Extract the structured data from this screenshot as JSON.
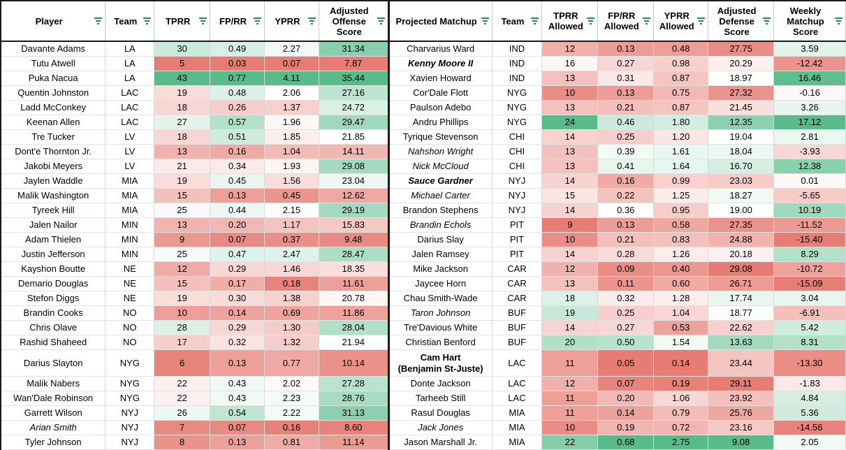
{
  "headers": {
    "player": "Player",
    "team": "Team",
    "tprr": "TPRR",
    "fprr": "FP/RR",
    "yprr": "YPRR",
    "aos": "Adjusted Offense Score",
    "matchup": "Projected Matchup",
    "team2": "Team",
    "tprr_allowed": "TPRR Allowed",
    "fprr_allowed": "FP/RR Allowed",
    "yprr_allowed": "YPRR Allowed",
    "ads": "Adjusted Defense Score",
    "wms": "Weekly Matchup Score"
  },
  "colors": {
    "green": "#57bb8a",
    "white": "#ffffff",
    "red": "#e67c73"
  },
  "rows": [
    {
      "player": "Davante Adams",
      "team": "LA",
      "tprr": "30",
      "fprr": "0.49",
      "yprr": "2.27",
      "aos": "31.34",
      "matchup": "Charvarius Ward",
      "team2": "IND",
      "tprr_a": "12",
      "fprr_a": "0.13",
      "yprr_a": "0.48",
      "ads": "27.75",
      "wms": "3.59"
    },
    {
      "player": "Tutu Atwell",
      "team": "LA",
      "tprr": "5",
      "fprr": "0.03",
      "yprr": "0.07",
      "aos": "7.87",
      "matchup": "Kenny Moore II",
      "matchup_style": "bi",
      "team2": "IND",
      "tprr_a": "16",
      "fprr_a": "0.27",
      "yprr_a": "0.98",
      "ads": "20.29",
      "wms": "-12.42"
    },
    {
      "player": "Puka Nacua",
      "team": "LA",
      "tprr": "43",
      "fprr": "0.77",
      "yprr": "4.11",
      "aos": "35.44",
      "matchup": "Xavien Howard",
      "team2": "IND",
      "tprr_a": "13",
      "fprr_a": "0.31",
      "yprr_a": "0.87",
      "ads": "18.97",
      "wms": "16.46"
    },
    {
      "player": "Quentin Johnston",
      "team": "LAC",
      "tprr": "19",
      "fprr": "0.48",
      "yprr": "2.06",
      "aos": "27.16",
      "matchup": "Cor'Dale Flott",
      "team2": "NYG",
      "tprr_a": "10",
      "fprr_a": "0.13",
      "yprr_a": "0.75",
      "ads": "27.32",
      "wms": "-0.16"
    },
    {
      "player": "Ladd McConkey",
      "team": "LAC",
      "tprr": "18",
      "fprr": "0.26",
      "yprr": "1.37",
      "aos": "24.72",
      "matchup": "Paulson Adebo",
      "team2": "NYG",
      "tprr_a": "13",
      "fprr_a": "0.21",
      "yprr_a": "0.87",
      "ads": "21.45",
      "wms": "3.26"
    },
    {
      "player": "Keenan Allen",
      "team": "LAC",
      "tprr": "27",
      "fprr": "0.57",
      "yprr": "1.96",
      "aos": "29.47",
      "matchup": "Andru Phillips",
      "team2": "NYG",
      "tprr_a": "24",
      "fprr_a": "0.46",
      "yprr_a": "1.80",
      "ads": "12.35",
      "wms": "17.12"
    },
    {
      "player": "Tre Tucker",
      "team": "LV",
      "tprr": "18",
      "fprr": "0.51",
      "yprr": "1.85",
      "aos": "21.85",
      "matchup": "Tyrique Stevenson",
      "team2": "CHI",
      "tprr_a": "14",
      "fprr_a": "0.25",
      "yprr_a": "1.20",
      "ads": "19.04",
      "wms": "2.81"
    },
    {
      "player": "Dont'e Thornton Jr.",
      "team": "LV",
      "tprr": "13",
      "fprr": "0.16",
      "yprr": "1.04",
      "aos": "14.11",
      "matchup": "Nahshon Wright",
      "matchup_style": "it",
      "team2": "CHI",
      "tprr_a": "13",
      "fprr_a": "0.39",
      "yprr_a": "1.61",
      "ads": "18.04",
      "wms": "-3.93"
    },
    {
      "player": "Jakobi Meyers",
      "team": "LV",
      "tprr": "21",
      "fprr": "0.34",
      "yprr": "1.93",
      "aos": "29.08",
      "matchup": "Nick McCloud",
      "matchup_style": "it",
      "team2": "CHI",
      "tprr_a": "13",
      "fprr_a": "0.41",
      "yprr_a": "1.64",
      "ads": "16.70",
      "wms": "12.38"
    },
    {
      "player": "Jaylen Waddle",
      "team": "MIA",
      "tprr": "19",
      "fprr": "0.45",
      "yprr": "1.56",
      "aos": "23.04",
      "matchup": "Sauce Gardner",
      "matchup_style": "bi",
      "team2": "NYJ",
      "tprr_a": "14",
      "fprr_a": "0.16",
      "yprr_a": "0.99",
      "ads": "23.03",
      "wms": "0.01"
    },
    {
      "player": "Malik Washington",
      "team": "MIA",
      "tprr": "15",
      "fprr": "0.13",
      "yprr": "0.45",
      "aos": "12.62",
      "matchup": "Michael Carter",
      "matchup_style": "it",
      "team2": "NYJ",
      "tprr_a": "15",
      "fprr_a": "0.22",
      "yprr_a": "1.25",
      "ads": "18.27",
      "wms": "-5.65"
    },
    {
      "player": "Tyreek Hill",
      "team": "MIA",
      "tprr": "25",
      "fprr": "0.44",
      "yprr": "2.15",
      "aos": "29.19",
      "matchup": "Brandon Stephens",
      "team2": "NYJ",
      "tprr_a": "14",
      "fprr_a": "0.36",
      "yprr_a": "0.95",
      "ads": "19.00",
      "wms": "10.19"
    },
    {
      "player": "Jalen Nailor",
      "team": "MIN",
      "tprr": "13",
      "fprr": "0.20",
      "yprr": "1.17",
      "aos": "15.83",
      "matchup": "Brandin Echols",
      "matchup_style": "it",
      "team2": "PIT",
      "tprr_a": "9",
      "fprr_a": "0.13",
      "yprr_a": "0.58",
      "ads": "27.35",
      "wms": "-11.52"
    },
    {
      "player": "Adam Thielen",
      "team": "MIN",
      "tprr": "9",
      "fprr": "0.07",
      "yprr": "0.37",
      "aos": "9.48",
      "matchup": "Darius Slay",
      "team2": "PIT",
      "tprr_a": "10",
      "fprr_a": "0.21",
      "yprr_a": "0.83",
      "ads": "24.88",
      "wms": "-15.40"
    },
    {
      "player": "Justin Jefferson",
      "team": "MIN",
      "tprr": "25",
      "fprr": "0.47",
      "yprr": "2.47",
      "aos": "28.47",
      "matchup": "Jalen Ramsey",
      "team2": "PIT",
      "tprr_a": "14",
      "fprr_a": "0.28",
      "yprr_a": "1.26",
      "ads": "20.18",
      "wms": "8.29"
    },
    {
      "player": "Kayshon Boutte",
      "team": "NE",
      "tprr": "12",
      "fprr": "0.29",
      "yprr": "1.46",
      "aos": "18.35",
      "matchup": "Mike Jackson",
      "team2": "CAR",
      "tprr_a": "12",
      "fprr_a": "0.09",
      "yprr_a": "0.40",
      "ads": "29.08",
      "wms": "-10.72"
    },
    {
      "player": "Demario Douglas",
      "team": "NE",
      "tprr": "15",
      "fprr": "0.17",
      "yprr": "0.18",
      "aos": "11.61",
      "matchup": "Jaycee Horn",
      "team2": "CAR",
      "tprr_a": "13",
      "fprr_a": "0.11",
      "yprr_a": "0.60",
      "ads": "26.71",
      "wms": "-15.09"
    },
    {
      "player": "Stefon Diggs",
      "team": "NE",
      "tprr": "19",
      "fprr": "0.30",
      "yprr": "1.38",
      "aos": "20.78",
      "matchup": "Chau Smith-Wade",
      "team2": "CAR",
      "tprr_a": "18",
      "fprr_a": "0.32",
      "yprr_a": "1.28",
      "ads": "17.74",
      "wms": "3.04"
    },
    {
      "player": "Brandin Cooks",
      "team": "NO",
      "tprr": "10",
      "fprr": "0.14",
      "yprr": "0.69",
      "aos": "11.86",
      "matchup": "Taron Johnson",
      "matchup_style": "it",
      "team2": "BUF",
      "tprr_a": "19",
      "fprr_a": "0.25",
      "yprr_a": "1.04",
      "ads": "18.77",
      "wms": "-6.91"
    },
    {
      "player": "Chris Olave",
      "team": "NO",
      "tprr": "28",
      "fprr": "0.29",
      "yprr": "1.30",
      "aos": "28.04",
      "matchup": "Tre'Davious White",
      "team2": "BUF",
      "tprr_a": "14",
      "fprr_a": "0.27",
      "yprr_a": "0.53",
      "ads": "22.62",
      "wms": "5.42"
    },
    {
      "player": "Rashid Shaheed",
      "team": "NO",
      "tprr": "17",
      "fprr": "0.32",
      "yprr": "1.32",
      "aos": "21.94",
      "matchup": "Christian Benford",
      "team2": "BUF",
      "tprr_a": "20",
      "fprr_a": "0.50",
      "yprr_a": "1.54",
      "ads": "13.63",
      "wms": "8.31"
    },
    {
      "player": "Darius Slayton",
      "team": "NYG",
      "tprr": "6",
      "fprr": "0.13",
      "yprr": "0.77",
      "aos": "10.14",
      "matchup": "Cam Hart\n(Benjamin St-Juste)",
      "matchup_style": "bd",
      "tall": true,
      "team2": "LAC",
      "tprr_a": "11",
      "fprr_a": "0.05",
      "yprr_a": "0.14",
      "ads": "23.44",
      "wms": "-13.30"
    },
    {
      "player": "Malik Nabers",
      "team": "NYG",
      "tprr": "22",
      "fprr": "0.43",
      "yprr": "2.02",
      "aos": "27.28",
      "matchup": "Donte Jackson",
      "team2": "LAC",
      "tprr_a": "12",
      "fprr_a": "0.07",
      "yprr_a": "0.19",
      "ads": "29.11",
      "wms": "-1.83"
    },
    {
      "player": "Wan'Dale Robinson",
      "team": "NYG",
      "tprr": "22",
      "fprr": "0.43",
      "yprr": "2.23",
      "aos": "28.76",
      "matchup": "Tarheeb Still",
      "team2": "LAC",
      "tprr_a": "11",
      "fprr_a": "0.20",
      "yprr_a": "1.06",
      "ads": "23.92",
      "wms": "4.84"
    },
    {
      "player": "Garrett Wilson",
      "team": "NYJ",
      "tprr": "26",
      "fprr": "0.54",
      "yprr": "2.22",
      "aos": "31.13",
      "matchup": "Rasul Douglas",
      "team2": "MIA",
      "tprr_a": "11",
      "fprr_a": "0.14",
      "yprr_a": "0.79",
      "ads": "25.76",
      "wms": "5.36"
    },
    {
      "player": "Arian Smith",
      "player_style": "it",
      "team": "NYJ",
      "tprr": "7",
      "fprr": "0.07",
      "yprr": "0.16",
      "aos": "8.60",
      "matchup": "Jack Jones",
      "matchup_style": "it",
      "team2": "MIA",
      "tprr_a": "10",
      "fprr_a": "0.19",
      "yprr_a": "0.72",
      "ads": "23.16",
      "wms": "-14.56"
    },
    {
      "player": "Tyler Johnson",
      "team": "NYJ",
      "tprr": "8",
      "fprr": "0.13",
      "yprr": "0.81",
      "aos": "11.14",
      "matchup": "Jason Marshall Jr.",
      "team2": "MIA",
      "tprr_a": "22",
      "fprr_a": "0.68",
      "yprr_a": "2.75",
      "ads": "9.08",
      "wms": "2.05"
    }
  ]
}
